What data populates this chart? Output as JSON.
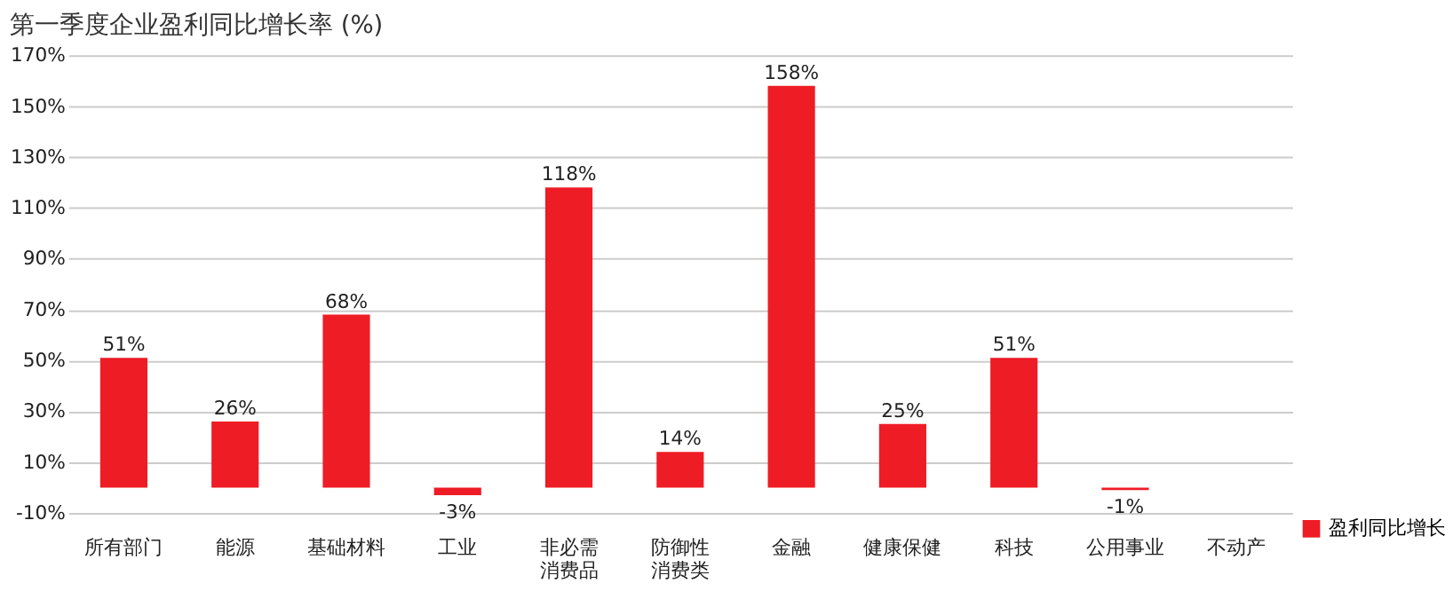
{
  "chart_data": {
    "type": "bar",
    "title": "第一季度企业盈利同比增长率 (%)",
    "categories": [
      "所有部门",
      "能源",
      "基础材料",
      "工业",
      "非必需消费品",
      "防御性消费类",
      "金融",
      "健康保健",
      "科技",
      "公用事业",
      "不动产"
    ],
    "series": [
      {
        "name": "盈利同比增长",
        "color": "#ee1c25",
        "values": [
          51,
          26,
          68,
          -3,
          118,
          14,
          158,
          25,
          51,
          -1,
          null
        ],
        "value_labels": [
          "51%",
          "26%",
          "68%",
          "-3%",
          "118%",
          "14%",
          "158%",
          "25%",
          "51%",
          "-1%",
          null
        ]
      }
    ],
    "ylim": [
      -10,
      170
    ],
    "yticks": [
      {
        "value": -10,
        "label": "-10%"
      },
      {
        "value": 10,
        "label": "10%"
      },
      {
        "value": 30,
        "label": "30%"
      },
      {
        "value": 50,
        "label": "50%"
      },
      {
        "value": 70,
        "label": "70%"
      },
      {
        "value": 90,
        "label": "90%"
      },
      {
        "value": 110,
        "label": "110%"
      },
      {
        "value": 130,
        "label": "130%"
      },
      {
        "value": 150,
        "label": "150%"
      },
      {
        "value": 170,
        "label": "170%"
      }
    ],
    "grid": "y",
    "legend": "bottom right"
  }
}
